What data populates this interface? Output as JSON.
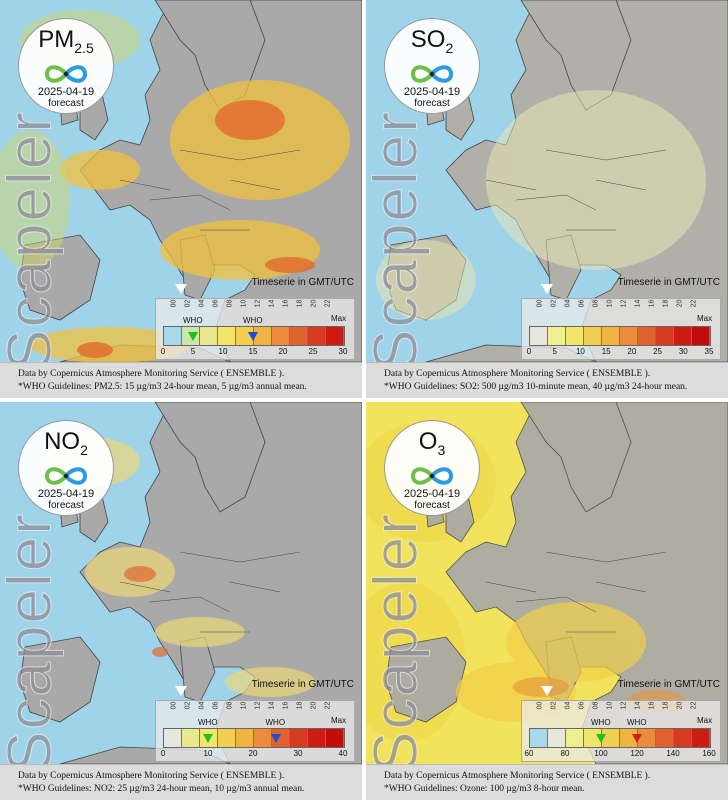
{
  "brand": "Scapeler",
  "timeserie_label": "Timeserie in GMT/UTC",
  "max_label": "Max",
  "who_label": "WHO",
  "hours": [
    "00",
    "02",
    "04",
    "06",
    "08",
    "10",
    "12",
    "14",
    "16",
    "18",
    "20",
    "22"
  ],
  "panels": [
    {
      "pollutant_main": "PM",
      "pollutant_sub": "2.5",
      "date": "2025-04-19",
      "status": "forecast",
      "scale_ticks": [
        "0",
        "5",
        "10",
        "15",
        "20",
        "25",
        "30"
      ],
      "scale_colors": [
        "#a8d8ec",
        "#cfe4a8",
        "#e6e690",
        "#f2e66a",
        "#f1cf52",
        "#f0b442",
        "#ea8c3c",
        "#e0622e",
        "#d63b22",
        "#cc1c14"
      ],
      "who_markers": [
        {
          "value": 5,
          "color": "#19c419"
        },
        {
          "value": 15,
          "color": "#1a4ed8"
        }
      ],
      "footer_source": "Data by Copernicus Atmosphere Monitoring Service ( ENSEMBLE ).",
      "footer_who": "*WHO Guidelines: PM2.5: 15 µg/m3 24-hour mean, 5 µg/m3 annual mean."
    },
    {
      "pollutant_main": "SO",
      "pollutant_sub": "2",
      "date": "2025-04-19",
      "status": "forecast",
      "scale_ticks": [
        "0",
        "5",
        "10",
        "15",
        "20",
        "25",
        "30",
        "35"
      ],
      "scale_colors": [
        "#e6e6dc",
        "#efef90",
        "#f1e56c",
        "#f1cf52",
        "#f0b442",
        "#ea8c3c",
        "#e0622e",
        "#d63b22",
        "#cc1c14",
        "#c40c0c"
      ],
      "who_markers": [],
      "footer_source": "Data by Copernicus Atmosphere Monitoring Service ( ENSEMBLE ).",
      "footer_who": "*WHO Guidelines: SO2: 500 µg/m3 10-minute mean, 40 µg/m3 24-hour mean."
    },
    {
      "pollutant_main": "NO",
      "pollutant_sub": "2",
      "date": "2025-04-19",
      "status": "forecast",
      "scale_ticks": [
        "0",
        "10",
        "20",
        "30",
        "40"
      ],
      "scale_colors": [
        "#e6e6dc",
        "#e8e88e",
        "#f1e56c",
        "#f1cf52",
        "#f0b442",
        "#ea8c3c",
        "#e0622e",
        "#d63b22",
        "#cc1c14",
        "#c40c0c"
      ],
      "who_markers": [
        {
          "value": 10,
          "color": "#19c419"
        },
        {
          "value": 25,
          "color": "#1a4ed8"
        }
      ],
      "footer_source": "Data by Copernicus Atmosphere Monitoring Service ( ENSEMBLE ).",
      "footer_who": "*WHO Guidelines: NO2: 25 µg/m3 24-hour mean, 10 µg/m3 annual mean."
    },
    {
      "pollutant_main": "O",
      "pollutant_sub": "3",
      "date": "2025-04-19",
      "status": "forecast",
      "scale_ticks": [
        "60",
        "80",
        "100",
        "120",
        "140",
        "160"
      ],
      "scale_colors": [
        "#a8d8ec",
        "#e6e6dc",
        "#efef90",
        "#f1e56c",
        "#f1cf52",
        "#f0b442",
        "#ea8c3c",
        "#e0622e",
        "#d63b22",
        "#cc1c14"
      ],
      "who_markers": [
        {
          "value": 100,
          "color": "#19c419"
        },
        {
          "value": 120,
          "color": "#d61a1a"
        }
      ],
      "footer_source": "Data by Copernicus Atmosphere Monitoring Service ( ENSEMBLE ).",
      "footer_who": "*WHO Guidelines: Ozone: 100 µg/m3 8-hour mean."
    }
  ],
  "colors": {
    "sea": "#9fd3ea",
    "land": "#a9a9a9",
    "border": "#444444",
    "footer_bg": "#dcdcdc"
  }
}
